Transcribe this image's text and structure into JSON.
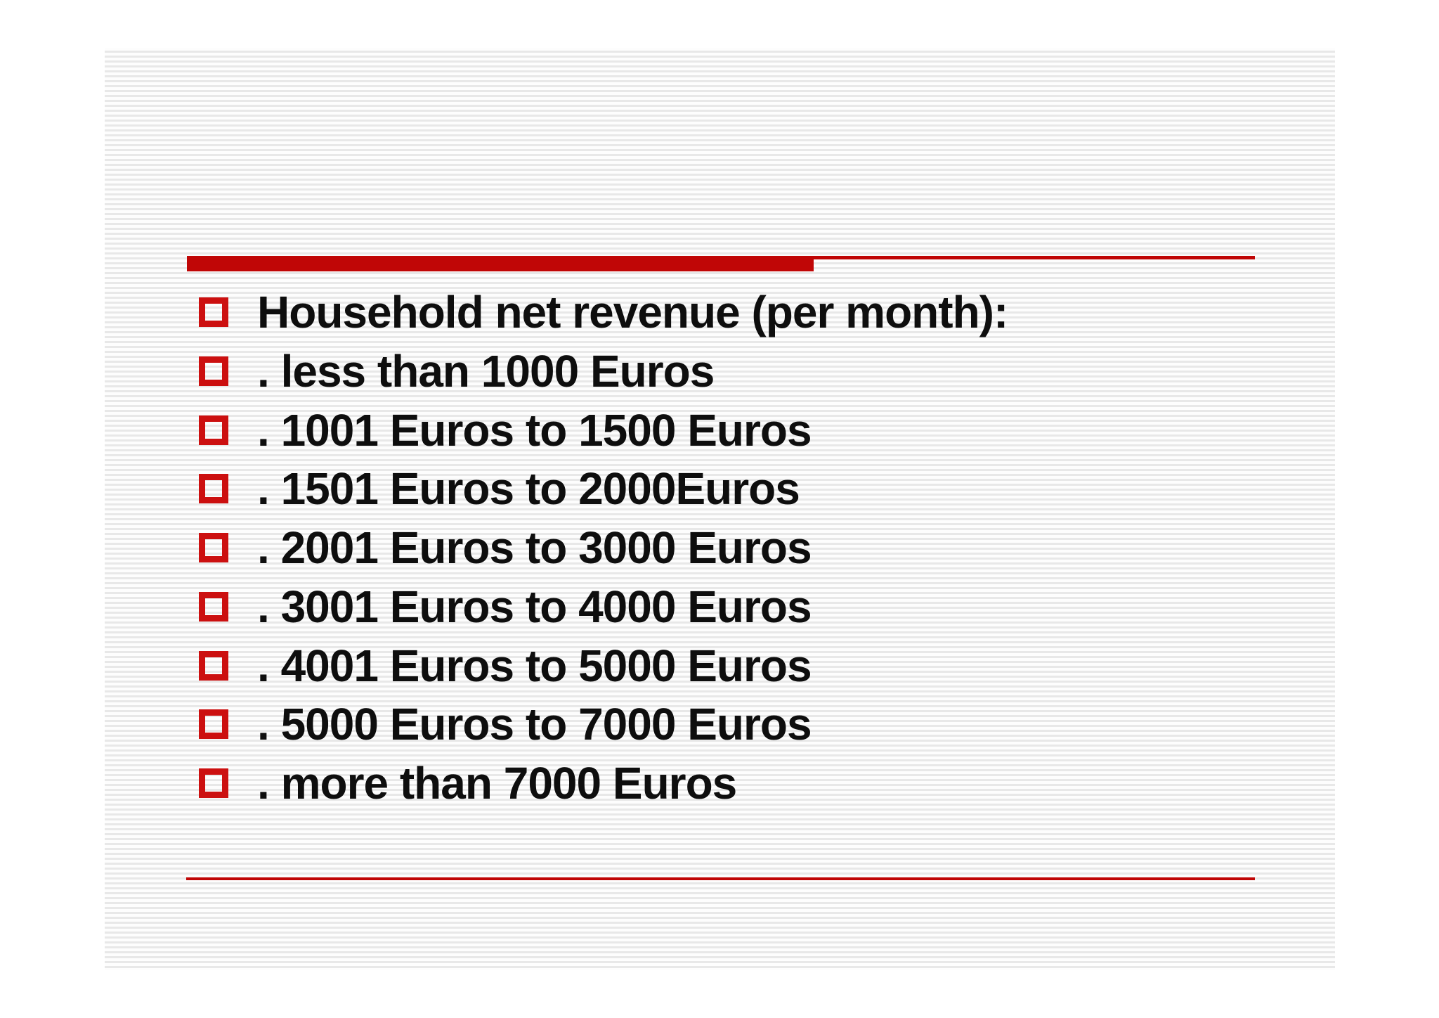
{
  "slide": {
    "items": [
      "Household net revenue (per month):",
      ". less than 1000 Euros",
      ". 1001 Euros to 1500 Euros",
      ". 1501 Euros to 2000Euros",
      ". 2001 Euros to 3000 Euros",
      ". 3001 Euros to 4000 Euros",
      ". 4001 Euros to 5000 Euros",
      ". 5000 Euros to 7000 Euros",
      ". more than 7000 Euros"
    ],
    "colors": {
      "accent_red": "#c00606",
      "checkbox_red": "#cc1010",
      "text": "#0e0e0e",
      "stripe_gray": "#e8e8e8"
    }
  }
}
